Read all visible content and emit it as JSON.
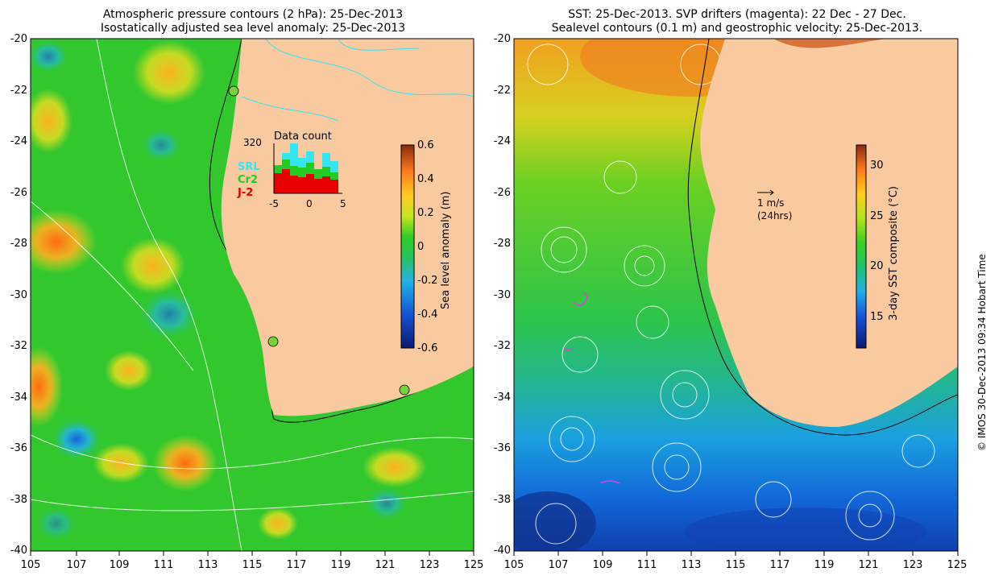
{
  "left_panel": {
    "title_line1": "Atmospheric pressure contours (2 hPa): 25-Dec-2013",
    "title_line2": "Isostatically adjusted sea level anomaly: 25-Dec-2013",
    "colorbar": {
      "label": "Sea level anomaly (m)",
      "ticks": [
        "0.6",
        "0.4",
        "0.2",
        "0",
        "-0.2",
        "-0.4",
        "-0.6"
      ]
    },
    "inset": {
      "title": "Data count",
      "max_count": "320",
      "legend": [
        {
          "label": "SRL",
          "color": "#33e6f2"
        },
        {
          "label": "Cr2",
          "color": "#22cc22"
        },
        {
          "label": "J-2",
          "color": "#e60000"
        }
      ],
      "x_ticks": [
        "-5",
        "0",
        "5"
      ]
    }
  },
  "right_panel": {
    "title_line1": "SST: 25-Dec-2013. SVP drifters (magenta): 22 Dec - 27 Dec.",
    "title_line2": "Sealevel contours (0.1 m) and geostrophic velocity: 25-Dec-2013.",
    "colorbar": {
      "label": "3-day SST composite (°C)",
      "ticks": [
        "30",
        "25",
        "20",
        "15"
      ]
    },
    "velocity_scale": {
      "line1": "1 m/s",
      "line2": "(24hrs)"
    }
  },
  "axes": {
    "lat_labels": [
      "-20",
      "-22",
      "-24",
      "-26",
      "-28",
      "-30",
      "-32",
      "-34",
      "-36",
      "-38",
      "-40"
    ],
    "lon_labels": [
      "105",
      "107",
      "109",
      "111",
      "113",
      "115",
      "117",
      "119",
      "121",
      "123",
      "125"
    ]
  },
  "credit": "© IMOS 30-Dec-2013 09:34 Hobart Time",
  "colors": {
    "land": "#f9c9a0",
    "ocean_mid": "#33cc22",
    "warm": "#ff9900",
    "cold": "#1144cc"
  }
}
